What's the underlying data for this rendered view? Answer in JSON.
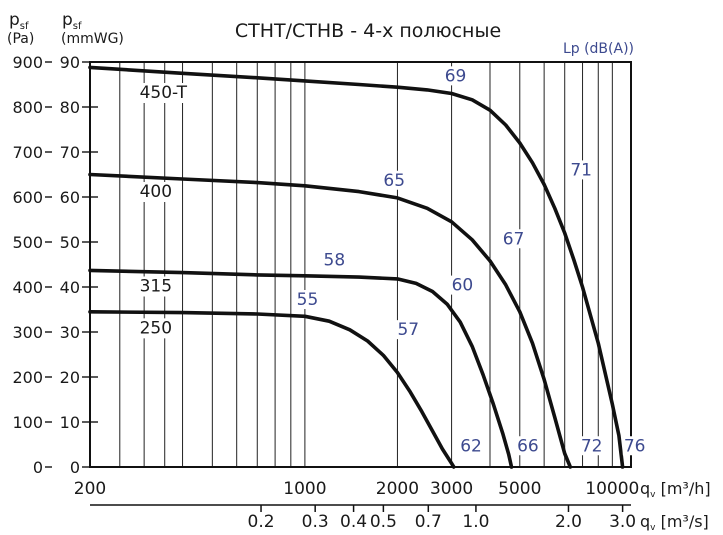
{
  "chart_data": {
    "type": "line",
    "title": "СТНТ/СТНВ - 4-х полюсные",
    "y_left_units": {
      "symbol": "p",
      "sub": "sf",
      "unit": "(Pa)"
    },
    "y_right_units": {
      "symbol": "p",
      "sub": "sf",
      "unit": "(mmWG)"
    },
    "noise_label": "Lp (dB(A))",
    "x_primary": {
      "label": "q",
      "sub": "v",
      "unit": "[m³/h]",
      "scale": "log",
      "range": [
        200,
        11500
      ],
      "ticks": [
        200,
        1000,
        2000,
        3000,
        5000,
        10000
      ],
      "tick_labels": [
        "200",
        "1000",
        "2000",
        "3000",
        "5000",
        "10000"
      ]
    },
    "x_secondary": {
      "label": "q",
      "sub": "v",
      "unit": "[m³/s]",
      "ticks": [
        0.2,
        0.3,
        0.4,
        0.5,
        0.7,
        1.0,
        2.0,
        3.0
      ],
      "tick_labels": [
        "0.2",
        "0.3",
        "0.4",
        "0.5",
        "0.7",
        "1.0",
        "2.0",
        "3.0"
      ]
    },
    "y_pa": {
      "range": [
        0,
        900
      ],
      "ticks": [
        0,
        100,
        200,
        300,
        400,
        500,
        600,
        700,
        800,
        900
      ],
      "tick_labels": [
        "0",
        "100",
        "200",
        "300",
        "400",
        "500",
        "600",
        "700",
        "800",
        "900"
      ]
    },
    "y_mmwg": {
      "range": [
        0,
        90
      ],
      "ticks": [
        0,
        10,
        20,
        30,
        40,
        50,
        60,
        70,
        80,
        90
      ],
      "tick_labels": [
        "0",
        "10",
        "20",
        "30",
        "40",
        "50",
        "60",
        "70",
        "80",
        "90"
      ]
    },
    "grid": true,
    "vertical_gridlines_m3h": [
      250,
      300,
      350,
      400,
      500,
      600,
      700,
      800,
      900,
      1000,
      2000,
      3000,
      4000,
      5000,
      6000,
      7000,
      8000,
      9000,
      10000
    ],
    "series": [
      {
        "name": "450-T",
        "x": [
          200,
          400,
          700,
          1000,
          1500,
          2000,
          2500,
          3000,
          3500,
          4000,
          4500,
          5000,
          5500,
          6000,
          6500,
          7000,
          7500,
          8000,
          9000,
          10000,
          10500,
          10800
        ],
        "y": [
          888,
          875,
          865,
          858,
          850,
          844,
          838,
          830,
          816,
          793,
          760,
          720,
          676,
          628,
          575,
          520,
          460,
          400,
          275,
          140,
          70,
          0
        ]
      },
      {
        "name": "400",
        "x": [
          200,
          400,
          700,
          1000,
          1500,
          2000,
          2500,
          3000,
          3500,
          4000,
          4500,
          5000,
          5500,
          6000,
          6500,
          7000,
          7300
        ],
        "y": [
          650,
          640,
          632,
          625,
          612,
          598,
          575,
          545,
          505,
          458,
          405,
          345,
          275,
          195,
          110,
          30,
          0
        ]
      },
      {
        "name": "315",
        "x": [
          200,
          400,
          700,
          1000,
          1500,
          2000,
          2300,
          2600,
          2900,
          3200,
          3500,
          3800,
          4100,
          4400,
          4600,
          4700
        ],
        "y": [
          437,
          432,
          427,
          425,
          422,
          418,
          408,
          390,
          362,
          322,
          268,
          205,
          140,
          75,
          28,
          0
        ]
      },
      {
        "name": "250",
        "x": [
          200,
          400,
          700,
          1000,
          1200,
          1400,
          1600,
          1800,
          2000,
          2200,
          2400,
          2600,
          2800,
          3000,
          3050
        ],
        "y": [
          345,
          343,
          340,
          335,
          324,
          305,
          280,
          248,
          210,
          167,
          123,
          80,
          40,
          8,
          0
        ]
      }
    ],
    "curve_labels": [
      {
        "text": "450-T",
        "x": 290,
        "y": 820
      },
      {
        "text": "400",
        "x": 290,
        "y": 600
      },
      {
        "text": "315",
        "x": 290,
        "y": 390
      },
      {
        "text": "250",
        "x": 290,
        "y": 297
      }
    ],
    "noise_annotations": [
      {
        "text": "69",
        "x": 2850,
        "y": 857
      },
      {
        "text": "71",
        "x": 7300,
        "y": 648
      },
      {
        "text": "65",
        "x": 1800,
        "y": 625
      },
      {
        "text": "67",
        "x": 4400,
        "y": 495
      },
      {
        "text": "58",
        "x": 1150,
        "y": 448
      },
      {
        "text": "60",
        "x": 3000,
        "y": 392
      },
      {
        "text": "55",
        "x": 940,
        "y": 360
      },
      {
        "text": "57",
        "x": 2000,
        "y": 293
      },
      {
        "text": "62",
        "x": 3200,
        "y": 35
      },
      {
        "text": "66",
        "x": 4900,
        "y": 35
      },
      {
        "text": "72",
        "x": 7900,
        "y": 35
      },
      {
        "text": "76",
        "x": 10900,
        "y": 35
      }
    ]
  }
}
